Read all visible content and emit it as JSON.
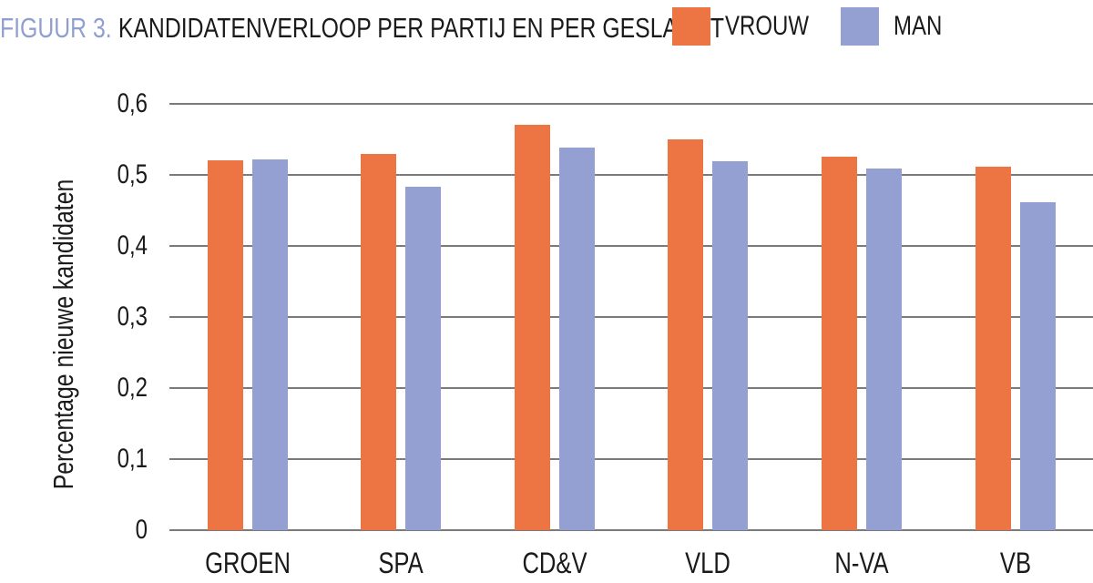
{
  "figure": {
    "label": "FIGUUR 3.",
    "title": "KANDIDATENVERLOOP PER PARTIJ EN PER GESLACHT"
  },
  "colors": {
    "vrouw_orange": "#ed7543",
    "man_blue": "#94a0d2",
    "gridline_gray": "#7b7b7b",
    "figure_label_blue": "#8f9fd0",
    "text_black": "#1a1a1a"
  },
  "chart_data": {
    "type": "bar",
    "title": "KANDIDATENVERLOOP PER PARTIJ EN PER GESLACHT",
    "figure_label": "FIGUUR 3.",
    "categories": [
      "GROEN",
      "SPA",
      "CD&V",
      "VLD",
      "N-VA",
      "VB"
    ],
    "series": [
      {
        "name": "VROUW",
        "color": "#ed7543",
        "values": [
          0.52,
          0.53,
          0.57,
          0.55,
          0.525,
          0.511
        ]
      },
      {
        "name": "MAN",
        "color": "#94a0d2",
        "values": [
          0.522,
          0.483,
          0.539,
          0.519,
          0.509,
          0.462
        ]
      }
    ],
    "xlabel": "",
    "ylabel": "Percentage nieuwe kandidaten",
    "ylim": [
      0,
      0.6
    ],
    "ytick_values": [
      0,
      0.1,
      0.2,
      0.3,
      0.4,
      0.5,
      0.6
    ],
    "ytick_labels": [
      "0",
      "0,1",
      "0,2",
      "0,3",
      "0,4",
      "0,5",
      "0,6"
    ],
    "grid": true,
    "legend_position": "top-right"
  }
}
